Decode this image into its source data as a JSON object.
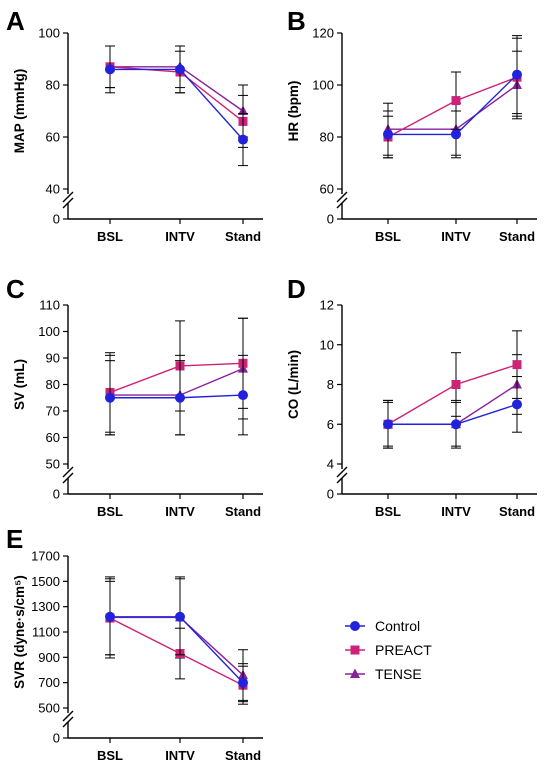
{
  "chart_data": [
    {
      "panel": "A",
      "type": "line",
      "categories": [
        "BSL",
        "INTV",
        "Stand"
      ],
      "ylabel": "MAP (mmHg)",
      "ylim": [
        40,
        100
      ],
      "yticks": [
        "40",
        "60",
        "80",
        "100"
      ],
      "y_zero_label": "0",
      "series": [
        {
          "name": "Control",
          "values": [
            86,
            86,
            59
          ],
          "err": [
            9,
            9,
            10
          ]
        },
        {
          "name": "PREACT",
          "values": [
            87,
            85,
            66
          ],
          "err": [
            8,
            8,
            10
          ]
        },
        {
          "name": "TENSE",
          "values": [
            87,
            87,
            70
          ],
          "err": [
            8,
            8,
            10
          ]
        }
      ]
    },
    {
      "panel": "B",
      "type": "line",
      "categories": [
        "BSL",
        "INTV",
        "Stand"
      ],
      "ylabel": "HR (bpm)",
      "ylim": [
        60,
        120
      ],
      "yticks": [
        "60",
        "80",
        "100",
        "120"
      ],
      "y_zero_label": "0",
      "series": [
        {
          "name": "Control",
          "values": [
            81,
            81,
            104
          ],
          "err": [
            9,
            9,
            15
          ]
        },
        {
          "name": "PREACT",
          "values": [
            80,
            94,
            103
          ],
          "err": [
            8,
            11,
            15
          ]
        },
        {
          "name": "TENSE",
          "values": [
            83,
            83,
            100
          ],
          "err": [
            10,
            10,
            13
          ]
        }
      ]
    },
    {
      "panel": "C",
      "type": "line",
      "categories": [
        "BSL",
        "INTV",
        "Stand"
      ],
      "ylabel": "SV (mL)",
      "ylim": [
        50,
        110
      ],
      "yticks": [
        "50",
        "60",
        "70",
        "80",
        "90",
        "100",
        "110"
      ],
      "y_zero_label": "0",
      "series": [
        {
          "name": "Control",
          "values": [
            75,
            75,
            76
          ],
          "err": [
            14,
            14,
            15
          ]
        },
        {
          "name": "PREACT",
          "values": [
            77,
            87,
            88
          ],
          "err": [
            15,
            17,
            17
          ]
        },
        {
          "name": "TENSE",
          "values": [
            76,
            76,
            86
          ],
          "err": [
            15,
            15,
            19
          ]
        }
      ]
    },
    {
      "panel": "D",
      "type": "line",
      "categories": [
        "BSL",
        "INTV",
        "Stand"
      ],
      "ylabel": "CO (L/min)",
      "ylim": [
        4,
        12
      ],
      "yticks": [
        "4",
        "6",
        "8",
        "10",
        "12"
      ],
      "y_zero_label": "0",
      "series": [
        {
          "name": "Control",
          "values": [
            6,
            6,
            7
          ],
          "err": [
            1.2,
            1.2,
            1.4
          ]
        },
        {
          "name": "PREACT",
          "values": [
            6,
            8,
            9
          ],
          "err": [
            1.2,
            1.6,
            1.7
          ]
        },
        {
          "name": "TENSE",
          "values": [
            6,
            6,
            8
          ],
          "err": [
            1.1,
            1.1,
            1.5
          ]
        }
      ]
    },
    {
      "panel": "E",
      "type": "line",
      "categories": [
        "BSL",
        "INTV",
        "Stand"
      ],
      "ylabel": "SVR (dyne·s/cm⁵)",
      "ylim": [
        500,
        1700
      ],
      "yticks": [
        "500",
        "700",
        "900",
        "1100",
        "1300",
        "1500",
        "1700"
      ],
      "y_zero_label": "0",
      "series": [
        {
          "name": "Control",
          "values": [
            1220,
            1220,
            700
          ],
          "err": [
            300,
            300,
            150
          ]
        },
        {
          "name": "PREACT",
          "values": [
            1210,
            930,
            680
          ],
          "err": [
            290,
            200,
            150
          ]
        },
        {
          "name": "TENSE",
          "values": [
            1215,
            1215,
            760
          ],
          "err": [
            320,
            320,
            200
          ]
        }
      ]
    }
  ],
  "legend": {
    "placement": "right of panel E",
    "items": [
      {
        "label": "Control",
        "color": "#2222dd",
        "marker": "circle"
      },
      {
        "label": "PREACT",
        "color": "#cc2277",
        "marker": "square"
      },
      {
        "label": "TENSE",
        "color": "#882299",
        "marker": "triangle"
      }
    ]
  },
  "colors": {
    "Control": "#2222dd",
    "PREACT": "#cc2277",
    "TENSE": "#882299",
    "axis": "#000000"
  }
}
